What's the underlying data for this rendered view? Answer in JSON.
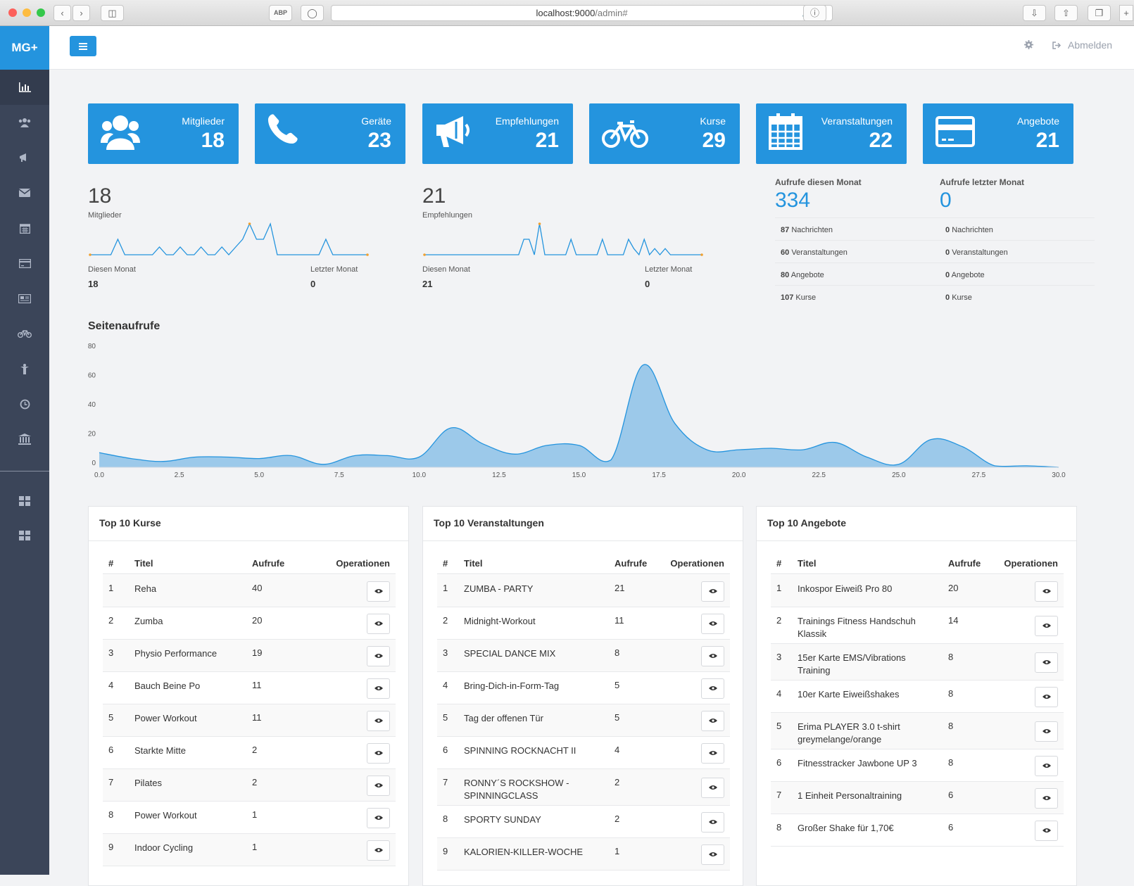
{
  "browser": {
    "url_host": "localhost:9000",
    "url_path": "/admin#"
  },
  "brand": "MG+",
  "topbar": {
    "logout_label": "Abmelden"
  },
  "stats": [
    {
      "label": "Mitglieder",
      "value": "18",
      "icon": "users-icon"
    },
    {
      "label": "Geräte",
      "value": "23",
      "icon": "phone-icon"
    },
    {
      "label": "Empfehlungen",
      "value": "21",
      "icon": "megaphone-icon"
    },
    {
      "label": "Kurse",
      "value": "29",
      "icon": "bicycle-icon"
    },
    {
      "label": "Veranstaltungen",
      "value": "22",
      "icon": "calendar-icon"
    },
    {
      "label": "Angebote",
      "value": "21",
      "icon": "credit-card-icon"
    }
  ],
  "spark_members": {
    "number": "18",
    "label": "Mitglieder",
    "this_month_label": "Diesen Monat",
    "this_month": "18",
    "last_month_label": "Letzter Monat",
    "last_month": "0",
    "series": [
      0,
      0,
      0,
      0,
      1,
      0,
      0,
      0,
      0,
      0,
      0.5,
      0,
      0,
      0.5,
      0,
      0,
      0.5,
      0,
      0,
      0.5,
      0,
      0.5,
      1,
      2,
      1,
      1,
      2,
      0,
      0,
      0,
      0,
      0,
      0,
      0,
      1,
      0,
      0,
      0,
      0,
      0,
      0
    ]
  },
  "spark_recs": {
    "number": "21",
    "label": "Empfehlungen",
    "this_month_label": "Diesen Monat",
    "this_month": "21",
    "last_month_label": "Letzter Monat",
    "last_month": "0",
    "series": [
      0,
      0,
      0,
      0,
      0,
      0,
      0,
      0,
      0,
      0,
      0,
      0,
      0,
      0,
      0,
      0,
      0,
      0,
      0,
      0.5,
      0.5,
      0,
      1,
      0,
      0,
      0,
      0,
      0,
      0.5,
      0,
      0,
      0,
      0,
      0,
      0.5,
      0,
      0,
      0,
      0,
      0.5,
      0.2,
      0,
      0.5,
      0,
      0.2,
      0,
      0.2,
      0,
      0,
      0,
      0,
      0,
      0,
      0
    ]
  },
  "views_this": {
    "title": "Aufrufe diesen Monat",
    "value": "334",
    "items": [
      {
        "n": "87",
        "t": "Nachrichten"
      },
      {
        "n": "60",
        "t": "Veranstaltungen"
      },
      {
        "n": "80",
        "t": "Angebote"
      },
      {
        "n": "107",
        "t": "Kurse"
      }
    ]
  },
  "views_last": {
    "title": "Aufrufe letzter Monat",
    "value": "0",
    "items": [
      {
        "n": "0",
        "t": "Nachrichten"
      },
      {
        "n": "0",
        "t": "Veranstaltungen"
      },
      {
        "n": "0",
        "t": "Angebote"
      },
      {
        "n": "0",
        "t": "Kurse"
      }
    ]
  },
  "chart_title": "Seitenaufrufe",
  "chart_data": {
    "type": "area",
    "title": "Seitenaufrufe",
    "xlim": [
      0,
      30
    ],
    "ylim": [
      0,
      80
    ],
    "xticks": [
      "0.0",
      "2.5",
      "5.0",
      "7.5",
      "10.0",
      "12.5",
      "15.0",
      "17.5",
      "20.0",
      "22.5",
      "25.0",
      "27.5",
      "30.0"
    ],
    "yticks": [
      "0",
      "20",
      "40",
      "60",
      "80"
    ],
    "x": [
      0,
      1,
      2,
      3,
      4,
      5,
      6,
      7,
      8,
      9,
      10,
      11,
      12,
      13,
      14,
      15,
      16,
      17,
      18,
      19,
      20,
      21,
      22,
      23,
      24,
      25,
      26,
      27,
      28,
      29,
      30
    ],
    "values": [
      10,
      6,
      4,
      7,
      7,
      6,
      8,
      2,
      8,
      8,
      7,
      27,
      16,
      9,
      15,
      15,
      5,
      70,
      30,
      12,
      12,
      13,
      12,
      17,
      7,
      2,
      19,
      14,
      1,
      1,
      0
    ],
    "color": "#2494de"
  },
  "panels": [
    {
      "title": "Top 10 Kurse",
      "cols": [
        "#",
        "Titel",
        "Aufrufe",
        "Operationen"
      ],
      "rows": [
        [
          "1",
          "Reha",
          "40"
        ],
        [
          "2",
          "Zumba",
          "20"
        ],
        [
          "3",
          "Physio Performance",
          "19"
        ],
        [
          "4",
          "Bauch Beine Po",
          "11"
        ],
        [
          "5",
          "Power Workout",
          "11"
        ],
        [
          "6",
          "Starkte Mitte",
          "2"
        ],
        [
          "7",
          "Pilates",
          "2"
        ],
        [
          "8",
          "Power Workout",
          "1"
        ],
        [
          "9",
          "Indoor Cycling",
          "1"
        ]
      ]
    },
    {
      "title": "Top 10 Veranstaltungen",
      "cols": [
        "#",
        "Titel",
        "Aufrufe",
        "Operationen"
      ],
      "rows": [
        [
          "1",
          "ZUMBA - PARTY",
          "21"
        ],
        [
          "2",
          "Midnight-Workout",
          "11"
        ],
        [
          "3",
          "SPECIAL DANCE MIX",
          "8"
        ],
        [
          "4",
          "Bring-Dich-in-Form-Tag",
          "5"
        ],
        [
          "5",
          "Tag der offenen Tür",
          "5"
        ],
        [
          "6",
          "SPINNING ROCKNACHT II",
          "4"
        ],
        [
          "7",
          "RONNY´S ROCKSHOW - SPINNINGCLASS",
          "2"
        ],
        [
          "8",
          "SPORTY SUNDAY",
          "2"
        ],
        [
          "9",
          "KALORIEN-KILLER-WOCHE",
          "1"
        ]
      ]
    },
    {
      "title": "Top 10 Angebote",
      "cols": [
        "#",
        "Titel",
        "Aufrufe",
        "Operationen"
      ],
      "rows": [
        [
          "1",
          "Inkospor Eiweiß Pro 80",
          "20"
        ],
        [
          "2",
          "Trainings Fitness Handschuh Klassik",
          "14"
        ],
        [
          "3",
          "15er Karte EMS/Vibrations Training",
          "8"
        ],
        [
          "4",
          "10er Karte Eiweißshakes",
          "8"
        ],
        [
          "5",
          "Erima PLAYER 3.0 t-shirt greymelange/orange",
          "8"
        ],
        [
          "6",
          "Fitnesstracker Jawbone UP 3",
          "8"
        ],
        [
          "7",
          "1 Einheit Personaltraining",
          "6"
        ],
        [
          "8",
          "Großer Shake für 1,70€",
          "6"
        ]
      ]
    }
  ]
}
